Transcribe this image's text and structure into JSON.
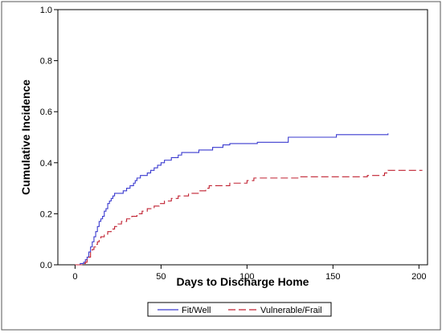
{
  "chart_data": {
    "type": "line",
    "step": true,
    "title": "",
    "xlabel": "Days to Discharge Home",
    "ylabel": "Cumulative Incidence",
    "xlim": [
      -10,
      205
    ],
    "ylim": [
      0,
      1.0
    ],
    "x_ticks": [
      0,
      50,
      100,
      150,
      200
    ],
    "y_ticks": [
      0.0,
      0.2,
      0.4,
      0.6,
      0.8,
      1.0
    ],
    "x_tick_labels": [
      "0",
      "50",
      "100",
      "150",
      "200"
    ],
    "y_tick_labels": [
      "0.0",
      "0.2",
      "0.4",
      "0.6",
      "0.8",
      "1.0"
    ],
    "grid": false,
    "legend_position": "bottom",
    "series": [
      {
        "name": "Fit/Well",
        "color": "#3a3acf",
        "style": "solid",
        "points": [
          [
            0,
            0.0
          ],
          [
            3,
            0.005
          ],
          [
            5,
            0.01
          ],
          [
            6,
            0.02
          ],
          [
            7,
            0.03
          ],
          [
            8,
            0.05
          ],
          [
            9,
            0.07
          ],
          [
            10,
            0.09
          ],
          [
            11,
            0.11
          ],
          [
            12,
            0.13
          ],
          [
            13,
            0.15
          ],
          [
            14,
            0.17
          ],
          [
            15,
            0.18
          ],
          [
            16,
            0.19
          ],
          [
            17,
            0.21
          ],
          [
            18,
            0.22
          ],
          [
            19,
            0.24
          ],
          [
            20,
            0.25
          ],
          [
            21,
            0.26
          ],
          [
            22,
            0.27
          ],
          [
            23,
            0.28
          ],
          [
            26,
            0.28
          ],
          [
            28,
            0.29
          ],
          [
            30,
            0.3
          ],
          [
            32,
            0.31
          ],
          [
            34,
            0.32
          ],
          [
            35,
            0.33
          ],
          [
            36,
            0.34
          ],
          [
            38,
            0.35
          ],
          [
            42,
            0.36
          ],
          [
            44,
            0.37
          ],
          [
            46,
            0.38
          ],
          [
            48,
            0.39
          ],
          [
            50,
            0.4
          ],
          [
            52,
            0.41
          ],
          [
            56,
            0.42
          ],
          [
            60,
            0.43
          ],
          [
            62,
            0.44
          ],
          [
            72,
            0.45
          ],
          [
            80,
            0.46
          ],
          [
            86,
            0.47
          ],
          [
            90,
            0.475
          ],
          [
            106,
            0.48
          ],
          [
            124,
            0.5
          ],
          [
            152,
            0.51
          ],
          [
            182,
            0.515
          ]
        ]
      },
      {
        "name": "Vulnerable/Frail",
        "color": "#c02030",
        "style": "dashed",
        "points": [
          [
            0,
            0.0
          ],
          [
            4,
            0.005
          ],
          [
            6,
            0.01
          ],
          [
            7,
            0.02
          ],
          [
            8,
            0.03
          ],
          [
            9,
            0.05
          ],
          [
            10,
            0.06
          ],
          [
            11,
            0.07
          ],
          [
            12,
            0.08
          ],
          [
            13,
            0.09
          ],
          [
            14,
            0.1
          ],
          [
            15,
            0.11
          ],
          [
            17,
            0.12
          ],
          [
            19,
            0.13
          ],
          [
            21,
            0.14
          ],
          [
            23,
            0.15
          ],
          [
            25,
            0.16
          ],
          [
            27,
            0.17
          ],
          [
            30,
            0.18
          ],
          [
            33,
            0.19
          ],
          [
            36,
            0.2
          ],
          [
            39,
            0.21
          ],
          [
            42,
            0.22
          ],
          [
            46,
            0.23
          ],
          [
            49,
            0.24
          ],
          [
            52,
            0.25
          ],
          [
            56,
            0.26
          ],
          [
            60,
            0.27
          ],
          [
            66,
            0.28
          ],
          [
            72,
            0.29
          ],
          [
            76,
            0.3
          ],
          [
            78,
            0.31
          ],
          [
            90,
            0.32
          ],
          [
            100,
            0.33
          ],
          [
            104,
            0.34
          ],
          [
            130,
            0.345
          ],
          [
            170,
            0.35
          ],
          [
            180,
            0.36
          ],
          [
            182,
            0.37
          ],
          [
            202,
            0.37
          ]
        ]
      }
    ]
  }
}
